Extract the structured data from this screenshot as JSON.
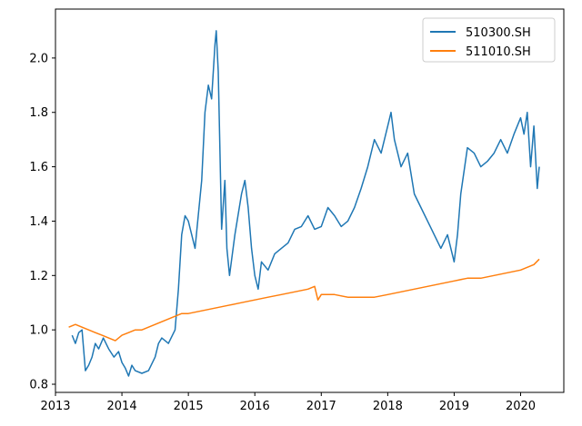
{
  "chart_data": {
    "type": "line",
    "title": "",
    "xlabel": "",
    "ylabel": "",
    "xlim": [
      2013.0,
      2020.65
    ],
    "ylim": [
      0.77,
      2.18
    ],
    "xticks": [
      2013,
      2014,
      2015,
      2016,
      2017,
      2018,
      2019,
      2020
    ],
    "xtick_labels": [
      "2013",
      "2014",
      "2015",
      "2016",
      "2017",
      "2018",
      "2019",
      "2020"
    ],
    "yticks": [
      0.8,
      1.0,
      1.2,
      1.4,
      1.6,
      1.8,
      2.0
    ],
    "ytick_labels": [
      "0.8",
      "1.0",
      "1.2",
      "1.4",
      "1.6",
      "1.8",
      "2.0"
    ],
    "grid": false,
    "legend": {
      "position": "top-right",
      "entries": [
        "510300.SH",
        "511010.SH"
      ]
    },
    "series": [
      {
        "name": "510300.SH",
        "color": "#1f77b4",
        "x": [
          2013.25,
          2013.3,
          2013.35,
          2013.4,
          2013.45,
          2013.5,
          2013.55,
          2013.6,
          2013.65,
          2013.72,
          2013.8,
          2013.88,
          2013.95,
          2014.0,
          2014.05,
          2014.1,
          2014.15,
          2014.2,
          2014.3,
          2014.4,
          2014.5,
          2014.55,
          2014.6,
          2014.7,
          2014.8,
          2014.85,
          2014.9,
          2014.95,
          2015.0,
          2015.1,
          2015.2,
          2015.25,
          2015.3,
          2015.35,
          2015.4,
          2015.42,
          2015.45,
          2015.5,
          2015.55,
          2015.58,
          2015.62,
          2015.7,
          2015.8,
          2015.85,
          2015.9,
          2015.95,
          2016.0,
          2016.05,
          2016.1,
          2016.2,
          2016.3,
          2016.4,
          2016.5,
          2016.6,
          2016.7,
          2016.8,
          2016.9,
          2017.0,
          2017.1,
          2017.2,
          2017.3,
          2017.4,
          2017.5,
          2017.6,
          2017.7,
          2017.8,
          2017.9,
          2018.0,
          2018.05,
          2018.1,
          2018.2,
          2018.3,
          2018.4,
          2018.5,
          2018.6,
          2018.7,
          2018.8,
          2018.9,
          2019.0,
          2019.05,
          2019.1,
          2019.2,
          2019.3,
          2019.4,
          2019.5,
          2019.6,
          2019.7,
          2019.8,
          2019.9,
          2020.0,
          2020.05,
          2020.1,
          2020.15,
          2020.2,
          2020.25,
          2020.28
        ],
        "y": [
          0.98,
          0.95,
          0.99,
          1.0,
          0.85,
          0.87,
          0.9,
          0.95,
          0.93,
          0.97,
          0.93,
          0.9,
          0.92,
          0.88,
          0.86,
          0.83,
          0.87,
          0.85,
          0.84,
          0.85,
          0.9,
          0.95,
          0.97,
          0.95,
          1.0,
          1.15,
          1.35,
          1.42,
          1.4,
          1.3,
          1.55,
          1.8,
          1.9,
          1.85,
          2.05,
          2.1,
          1.95,
          1.37,
          1.55,
          1.3,
          1.2,
          1.35,
          1.5,
          1.55,
          1.45,
          1.3,
          1.2,
          1.15,
          1.25,
          1.22,
          1.28,
          1.3,
          1.32,
          1.37,
          1.38,
          1.42,
          1.37,
          1.38,
          1.45,
          1.42,
          1.38,
          1.4,
          1.45,
          1.52,
          1.6,
          1.7,
          1.65,
          1.75,
          1.8,
          1.7,
          1.6,
          1.65,
          1.5,
          1.45,
          1.4,
          1.35,
          1.3,
          1.35,
          1.25,
          1.35,
          1.5,
          1.67,
          1.65,
          1.6,
          1.62,
          1.65,
          1.7,
          1.65,
          1.72,
          1.78,
          1.72,
          1.8,
          1.6,
          1.75,
          1.52,
          1.6
        ]
      },
      {
        "name": "511010.SH",
        "color": "#ff7f0e",
        "x": [
          2013.2,
          2013.3,
          2013.4,
          2013.5,
          2013.6,
          2013.7,
          2013.8,
          2013.9,
          2014.0,
          2014.1,
          2014.2,
          2014.3,
          2014.4,
          2014.5,
          2014.6,
          2014.7,
          2014.8,
          2014.9,
          2015.0,
          2015.2,
          2015.4,
          2015.6,
          2015.8,
          2016.0,
          2016.2,
          2016.4,
          2016.6,
          2016.8,
          2016.9,
          2016.95,
          2017.0,
          2017.2,
          2017.4,
          2017.6,
          2017.8,
          2018.0,
          2018.2,
          2018.4,
          2018.6,
          2018.8,
          2019.0,
          2019.2,
          2019.4,
          2019.6,
          2019.8,
          2020.0,
          2020.1,
          2020.2,
          2020.28
        ],
        "y": [
          1.01,
          1.02,
          1.01,
          1.0,
          0.99,
          0.98,
          0.97,
          0.96,
          0.98,
          0.99,
          1.0,
          1.0,
          1.01,
          1.02,
          1.03,
          1.04,
          1.05,
          1.06,
          1.06,
          1.07,
          1.08,
          1.09,
          1.1,
          1.11,
          1.12,
          1.13,
          1.14,
          1.15,
          1.16,
          1.11,
          1.13,
          1.13,
          1.12,
          1.12,
          1.12,
          1.13,
          1.14,
          1.15,
          1.16,
          1.17,
          1.18,
          1.19,
          1.19,
          1.2,
          1.21,
          1.22,
          1.23,
          1.24,
          1.26
        ]
      }
    ]
  }
}
